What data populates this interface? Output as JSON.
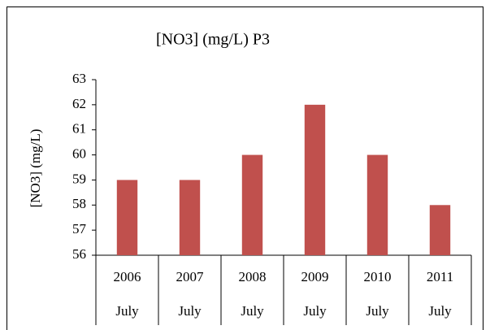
{
  "chart_data": {
    "type": "bar",
    "title": "[NO3] (mg/L) P3",
    "y_label": "[NO3] (mg/L)",
    "categories": [
      "2006",
      "2007",
      "2008",
      "2009",
      "2010",
      "2011"
    ],
    "subcategories": [
      "July",
      "July",
      "July",
      "July",
      "July",
      "July"
    ],
    "values": [
      59,
      59,
      60,
      62,
      60,
      58
    ],
    "color": "#c0504d",
    "ylim": [
      56,
      63
    ],
    "yticks": [
      56,
      57,
      58,
      59,
      60,
      61,
      62,
      63
    ],
    "grid": false
  }
}
